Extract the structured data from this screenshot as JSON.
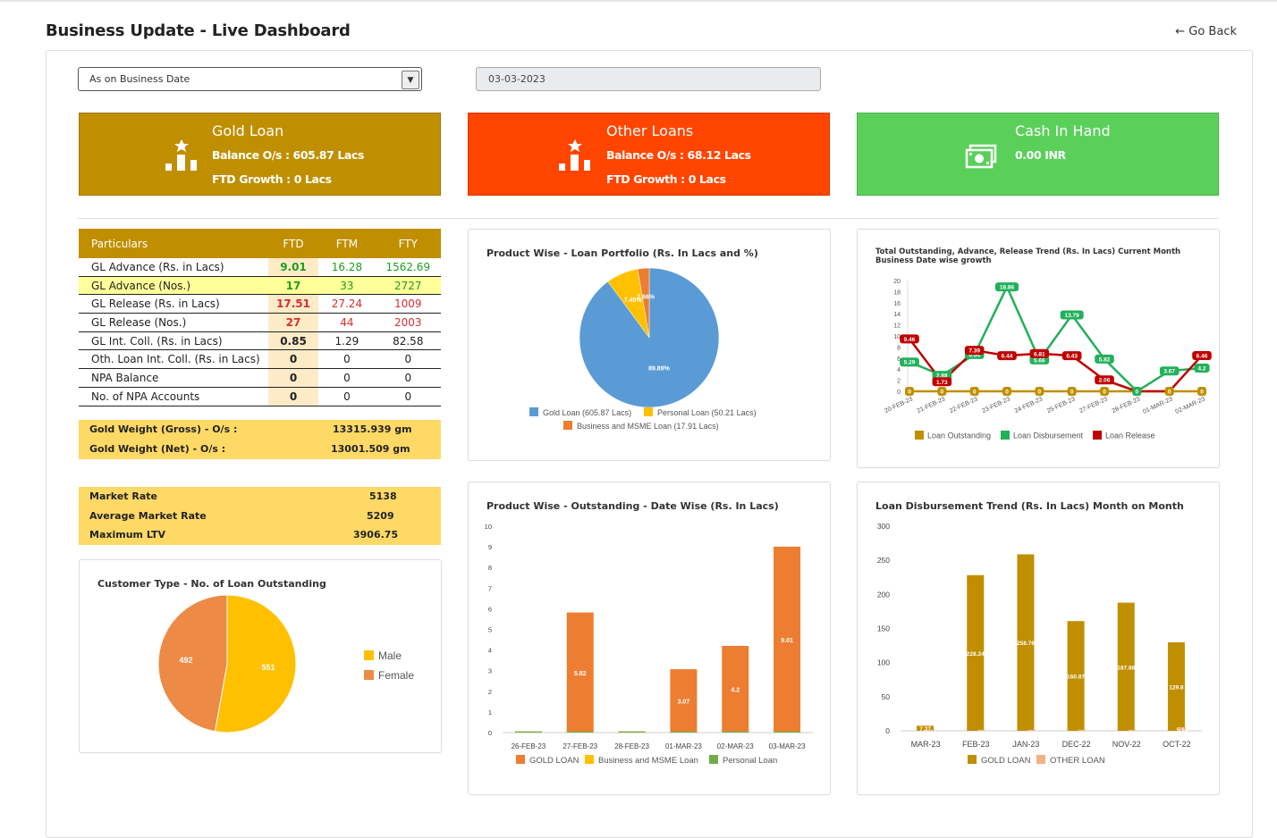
{
  "header": {
    "title": "Business Update - Live Dashboard",
    "go_back": "← Go Back"
  },
  "filters": {
    "mode": "As on Business Date",
    "date": "03-03-2023"
  },
  "cards": {
    "gold": {
      "title": "Gold Loan",
      "line1": "Balance O/s : 605.87 Lacs",
      "line2": "FTD Growth : 0 Lacs",
      "color": "#bf8f00"
    },
    "other": {
      "title": "Other Loans",
      "line1": "Balance O/s : 68.12 Lacs",
      "line2": "FTD Growth : 0 Lacs",
      "color": "#ff4500"
    },
    "cash": {
      "title": "Cash In Hand",
      "line1": "0.00 INR",
      "color": "#5ad05a"
    }
  },
  "particulars": {
    "headers": [
      "Particulars",
      "FTD",
      "FTM",
      "FTY"
    ],
    "rows": [
      {
        "label": "GL Advance (Rs. in Lacs)",
        "ftd": "9.01",
        "ftm": "16.28",
        "fty": "1562.69"
      },
      {
        "label": "GL Advance (Nos.)",
        "ftd": "17",
        "ftm": "33",
        "fty": "2727"
      },
      {
        "label": "GL Release (Rs. in Lacs)",
        "ftd": "17.51",
        "ftm": "27.24",
        "fty": "1009"
      },
      {
        "label": "GL Release (Nos.)",
        "ftd": "27",
        "ftm": "44",
        "fty": "2003"
      },
      {
        "label": "GL Int. Coll. (Rs. in Lacs)",
        "ftd": "0.85",
        "ftm": "1.29",
        "fty": "82.58"
      },
      {
        "label": "Oth. Loan Int. Coll. (Rs. in Lacs)",
        "ftd": "0",
        "ftm": "0",
        "fty": "0"
      },
      {
        "label": "NPA Balance",
        "ftd": "0",
        "ftm": "0",
        "fty": "0"
      },
      {
        "label": "No. of NPA Accounts",
        "ftd": "0",
        "ftm": "0",
        "fty": "0"
      }
    ]
  },
  "gold_weight": {
    "gross_label": "Gold Weight (Gross) - O/s :",
    "gross_value": "13315.939 gm",
    "net_label": "Gold Weight (Net) - O/s :",
    "net_value": "13001.509 gm"
  },
  "market": {
    "rate_label": "Market Rate",
    "rate_value": "5138",
    "avg_label": "Average Market Rate",
    "avg_value": "5209",
    "ltv_label": "Maximum LTV",
    "ltv_value": "3906.75"
  },
  "chart_data": [
    {
      "type": "pie",
      "title": "Customer Type - No. of Loan Outstanding",
      "slices": [
        {
          "name": "Male",
          "value": 551,
          "color": "#ffc000"
        },
        {
          "name": "Female",
          "value": 492,
          "color": "#ed8a45"
        }
      ],
      "legend": "right"
    },
    {
      "type": "pie",
      "title": "Product Wise - Loan Portfolio (Rs. In Lacs and %)",
      "slices": [
        {
          "name": "Gold Loan (605.87 Lacs)",
          "value": 605.87,
          "label": "89.89%",
          "color": "#5b9bd5"
        },
        {
          "name": "Personal Loan (50.21 Lacs)",
          "value": 50.21,
          "label": "7.45%",
          "color": "#ffc000"
        },
        {
          "name": "Business and MSME Loan (17.91 Lacs)",
          "value": 17.91,
          "label": "2.66%",
          "color": "#ed7d31"
        }
      ],
      "legend": "bottom"
    },
    {
      "type": "line",
      "title": "Total Outstanding, Advance, Release Trend (Rs. In Lacs) Current Month Business Date wise growth",
      "categories": [
        "20-FEB-23",
        "21-FEB-23",
        "22-FEB-23",
        "23-FEB-23",
        "24-FEB-23",
        "25-FEB-23",
        "27-FEB-23",
        "28-FEB-23",
        "01-MAR-23",
        "02-MAR-23"
      ],
      "ylim": [
        0,
        20
      ],
      "yticks": [
        "0",
        "2",
        "4",
        "6",
        "8",
        "10",
        "12",
        "14",
        "16",
        "18",
        "20"
      ],
      "series": [
        {
          "name": "Loan Outstanding",
          "color": "#bf8f00",
          "values": [
            0,
            0,
            0,
            0,
            0,
            0,
            0,
            0,
            0,
            0
          ],
          "labels": [
            "0",
            "0",
            "0",
            "0",
            "0",
            "0",
            "0",
            "0",
            "0",
            "0"
          ]
        },
        {
          "name": "Loan Disbursement",
          "color": "#22b05a",
          "values": [
            5.29,
            2.88,
            6.64,
            18.86,
            5.66,
            13.79,
            5.82,
            0,
            3.67,
            4.2
          ],
          "labels": [
            "5.29",
            "2.88",
            "6.64",
            "18.86",
            "5.66",
            "13.79",
            "5.82",
            "0",
            "3.67",
            "4.2"
          ]
        },
        {
          "name": "Loan Release",
          "color": "#c00000",
          "values": [
            9.46,
            1.73,
            7.39,
            6.44,
            6.81,
            6.43,
            2.06,
            0,
            0,
            6.46
          ],
          "labels": [
            "9.46",
            "1.73",
            "7.39",
            "6.44",
            "6.81",
            "6.43",
            "2.06",
            "",
            "",
            "6.46"
          ]
        }
      ],
      "legend": "bottom"
    },
    {
      "type": "bar",
      "title": "Product Wise - Outstanding - Date Wise (Rs. In Lacs)",
      "categories": [
        "26-FEB-23",
        "27-FEB-23",
        "28-FEB-23",
        "01-MAR-23",
        "02-MAR-23",
        "03-MAR-23"
      ],
      "ylim": [
        0,
        10
      ],
      "yticks": [
        "0",
        "1",
        "2",
        "3",
        "4",
        "5",
        "6",
        "7",
        "8",
        "9",
        "10"
      ],
      "series": [
        {
          "name": "GOLD LOAN",
          "color": "#ed7d31",
          "values": [
            0,
            5.82,
            0,
            3.07,
            4.2,
            9.01
          ],
          "labels": [
            "",
            "5.82",
            "",
            "3.07",
            "4.2",
            "9.01"
          ]
        },
        {
          "name": "Business and MSME Loan",
          "color": "#ffc000",
          "values": [
            0,
            0,
            0,
            0,
            0,
            0
          ]
        },
        {
          "name": "Personal Loan",
          "color": "#70ad47",
          "values": [
            0,
            0,
            0,
            0,
            0,
            0
          ]
        }
      ],
      "legend": "bottom"
    },
    {
      "type": "bar",
      "title": "Loan Disbursement Trend (Rs. In Lacs) Month on Month",
      "categories": [
        "MAR-23",
        "FEB-23",
        "JAN-23",
        "DEC-22",
        "NOV-22",
        "OCT-22"
      ],
      "ylim": [
        0,
        300
      ],
      "yticks": [
        "0",
        "50",
        "100",
        "150",
        "200",
        "250",
        "300"
      ],
      "series": [
        {
          "name": "GOLD LOAN",
          "color": "#bf8f00",
          "values": [
            7.37,
            228.24,
            258.76,
            160.87,
            187.88,
            129.8
          ],
          "labels": [
            "7.37",
            "228.24",
            "258.76",
            "160.87",
            "187.88",
            "129.8"
          ]
        },
        {
          "name": "OTHER LOAN",
          "color": "#f4b183",
          "values": [
            0,
            0,
            0,
            0,
            0,
            5.14
          ],
          "labels": [
            "",
            "",
            "",
            "",
            "",
            "5.14"
          ]
        }
      ],
      "legend": "bottom"
    }
  ]
}
